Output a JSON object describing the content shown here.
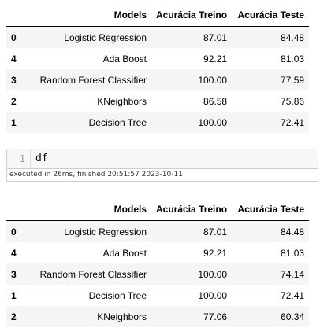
{
  "table_before": {
    "columns": [
      "",
      "Models",
      "Acurácia Treino",
      "Acurácia Teste"
    ],
    "rows": [
      {
        "index": "0",
        "model": "Logistic Regression",
        "train": "87.01",
        "test": "84.48"
      },
      {
        "index": "4",
        "model": "Ada Boost",
        "train": "92.21",
        "test": "81.03"
      },
      {
        "index": "3",
        "model": "Random Forest Classifier",
        "train": "100.00",
        "test": "77.59"
      },
      {
        "index": "2",
        "model": "KNeighbors",
        "train": "86.58",
        "test": "75.86"
      },
      {
        "index": "1",
        "model": "Decision Tree",
        "train": "100.00",
        "test": "72.41"
      }
    ]
  },
  "code_cell": {
    "line_number": "1",
    "code": "df",
    "execution_status": "executed in 26ms, finished 20:51:57 2023-10-11"
  },
  "table_after": {
    "columns": [
      "",
      "Models",
      "Acurácia Treino",
      "Acurácia Teste"
    ],
    "rows": [
      {
        "index": "0",
        "model": "Logistic Regression",
        "train": "87.01",
        "test": "84.48"
      },
      {
        "index": "4",
        "model": "Ada Boost",
        "train": "92.21",
        "test": "81.03"
      },
      {
        "index": "3",
        "model": "Random Forest Classifier",
        "train": "100.00",
        "test": "74.14"
      },
      {
        "index": "1",
        "model": "Decision Tree",
        "train": "100.00",
        "test": "72.41"
      },
      {
        "index": "2",
        "model": "KNeighbors",
        "train": "77.06",
        "test": "60.34"
      }
    ]
  }
}
